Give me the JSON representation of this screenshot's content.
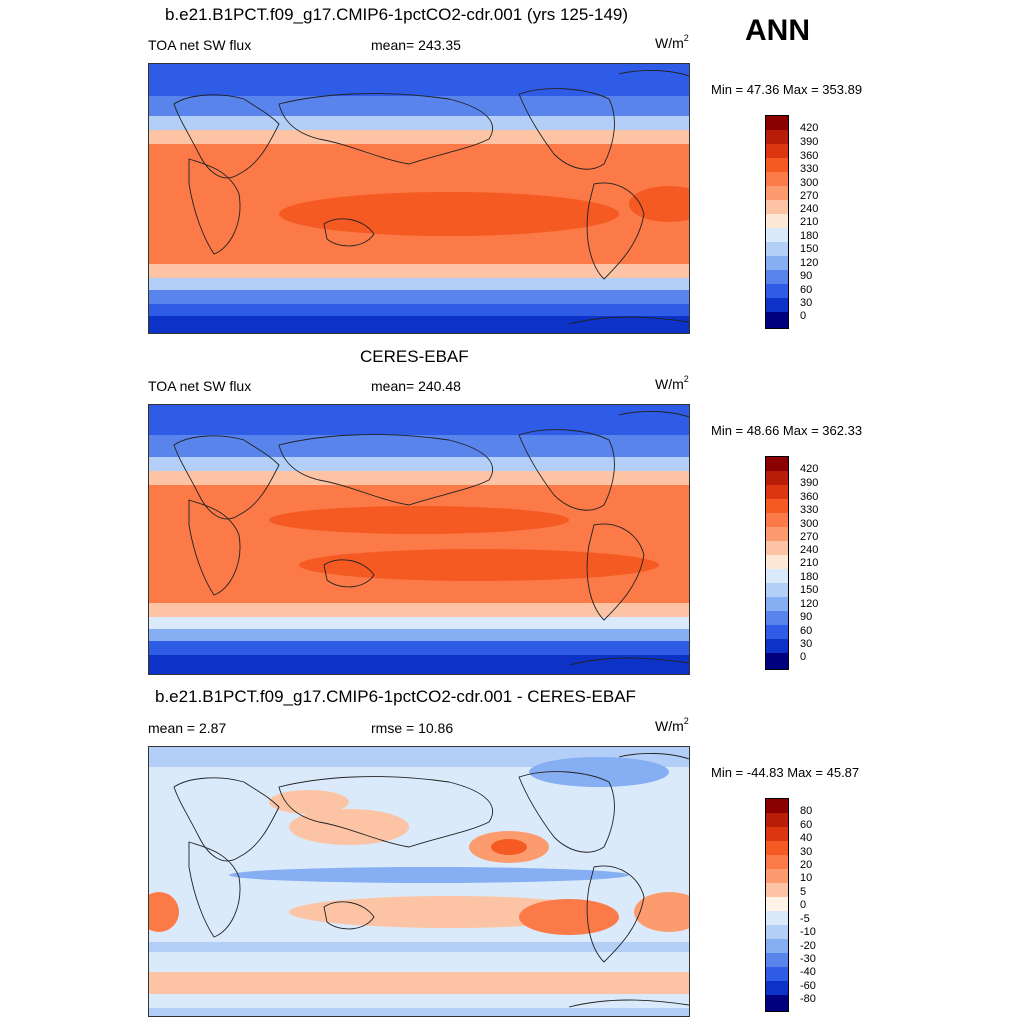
{
  "season": "ANN",
  "units_base": "W/m",
  "units_exp": "2",
  "panels": [
    {
      "title": "b.e21.B1PCT.f09_g17.CMIP6-1pctCO2-cdr.001 (yrs 125-149)",
      "left_label": "TOA net SW flux",
      "center_label": "mean= 243.35",
      "minmax": "Min =  47.36 Max = 353.89",
      "cbar_labels": [
        "420",
        "390",
        "360",
        "330",
        "300",
        "270",
        "240",
        "210",
        "180",
        "150",
        "120",
        "90",
        "60",
        "30",
        "0"
      ]
    },
    {
      "title": "CERES-EBAF",
      "left_label": "TOA net SW flux",
      "center_label": "mean= 240.48",
      "minmax": "Min =  48.66 Max = 362.33",
      "cbar_labels": [
        "420",
        "390",
        "360",
        "330",
        "300",
        "270",
        "240",
        "210",
        "180",
        "150",
        "120",
        "90",
        "60",
        "30",
        "0"
      ]
    },
    {
      "title": "b.e21.B1PCT.f09_g17.CMIP6-1pctCO2-cdr.001 - CERES-EBAF",
      "left_label": "mean =   2.87",
      "center_label": "rmse =  10.86",
      "minmax": "Min = -44.83 Max =  45.87",
      "cbar_labels": [
        "80",
        "60",
        "40",
        "30",
        "20",
        "10",
        "5",
        "0",
        "-5",
        "-10",
        "-20",
        "-30",
        "-40",
        "-60",
        "-80"
      ]
    }
  ],
  "colors": {
    "abs_scale": [
      "#8b0000",
      "#b81d08",
      "#dc3610",
      "#f45a22",
      "#fb7a48",
      "#fc9b6e",
      "#fcc4a4",
      "#fde8d6",
      "#dbeafb",
      "#b3cff7",
      "#86aef2",
      "#5884ec",
      "#2e5ce6",
      "#0d32c7",
      "#00007f"
    ],
    "diff_scale": [
      "#8b0000",
      "#b81d08",
      "#dc3610",
      "#f45a22",
      "#fb7a48",
      "#fc9b6e",
      "#fcc4a4",
      "#fff2e6",
      "#dbeafb",
      "#b3cff7",
      "#86aef2",
      "#5884ec",
      "#2e5ce6",
      "#0d32c7",
      "#00007f"
    ]
  }
}
